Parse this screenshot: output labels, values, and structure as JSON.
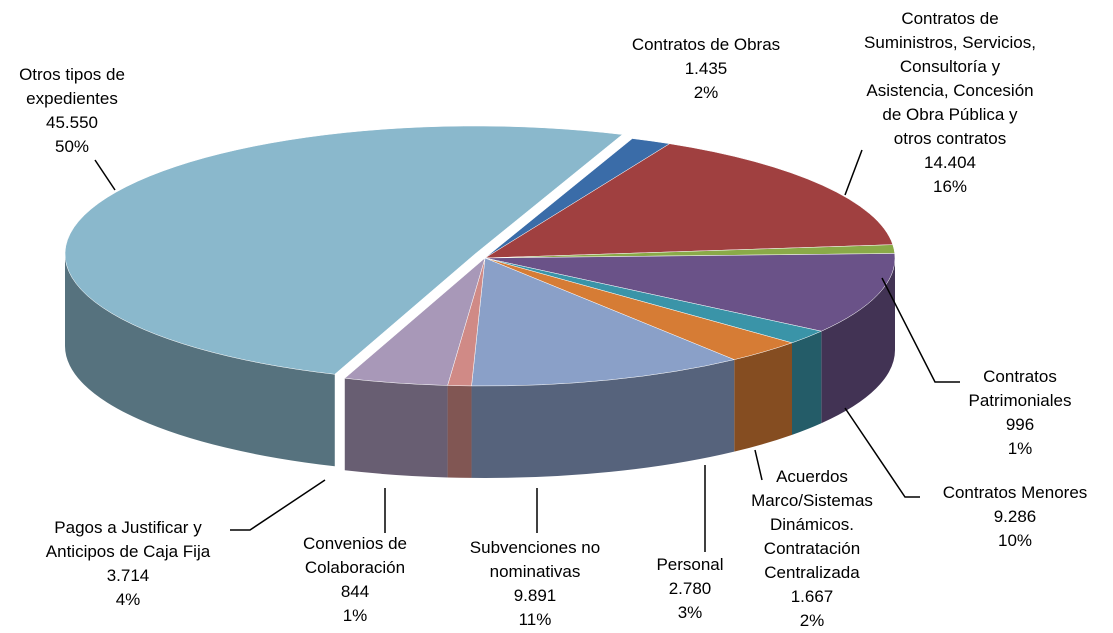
{
  "chart_data": {
    "type": "pie3d",
    "categories": [
      "Otros tipos de\nexpedientes",
      "Contratos de Obras",
      "Contratos de\nSuministros, Servicios,\nConsultoría y\nAsistencia, Concesión\nde Obra Pública y\notros contratos",
      "Contratos\nPatrimoniales",
      "Contratos Menores",
      "Acuerdos\nMarco/Sistemas\nDinámicos.\nContratación\nCentralizada",
      "Personal",
      "Subvenciones no\nnominativas",
      "Convenios de\nColaboración",
      "Pagos a Justificar y\nAnticipos de Caja Fija"
    ],
    "values": [
      45550,
      1435,
      14404,
      996,
      9286,
      1667,
      2780,
      9891,
      844,
      3714
    ],
    "value_labels": [
      "45.550",
      "1.435",
      "14.404",
      "996",
      "9.286",
      "1.667",
      "2.780",
      "9.891",
      "844",
      "3.714"
    ],
    "percent_labels": [
      "50%",
      "2%",
      "16%",
      "1%",
      "10%",
      "2%",
      "3%",
      "11%",
      "1%",
      "4%"
    ],
    "colors": [
      "#8ab8cc",
      "#3a6ca8",
      "#a04040",
      "#8aaa48",
      "#6a5288",
      "#3a94a8",
      "#d67c35",
      "#8aa0c8",
      "#d08a86",
      "#a898b8"
    ]
  }
}
